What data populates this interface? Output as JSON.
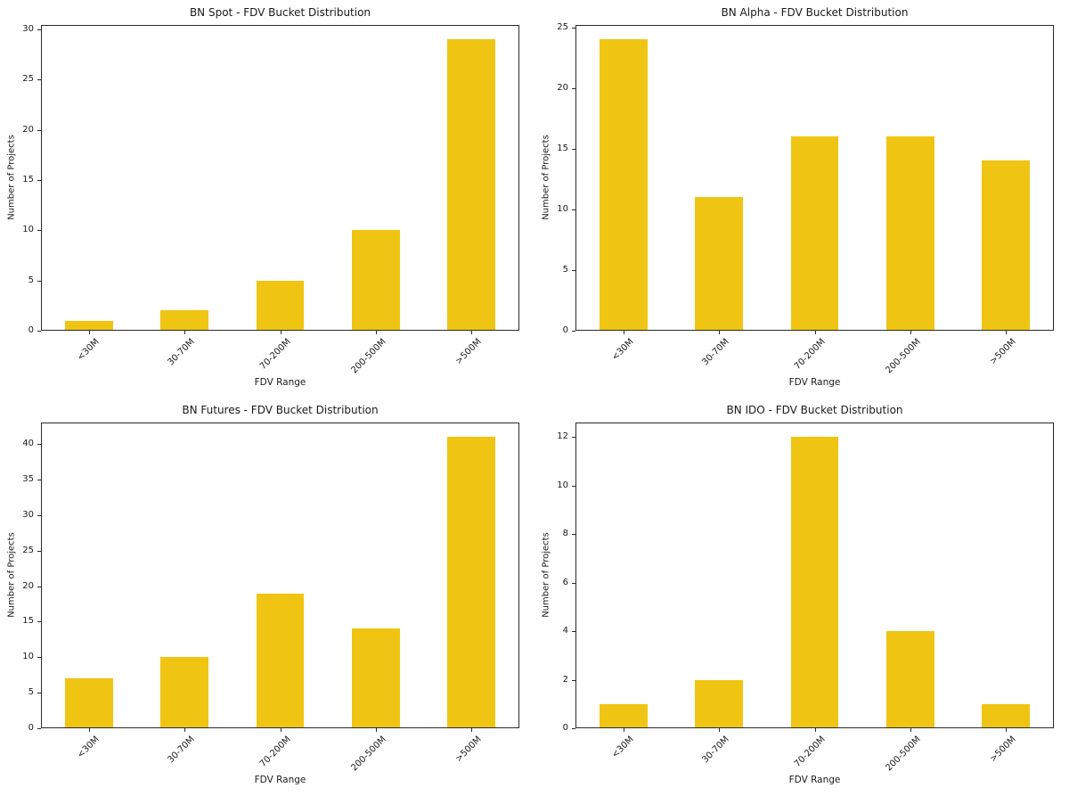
{
  "figure": {
    "background": "#ffffff",
    "axis_color": "#2a2a2a",
    "text_color": "#1a1a1a",
    "bar_color": "#f0c413"
  },
  "chart_data": [
    {
      "type": "bar",
      "title": "BN Spot - FDV Bucket Distribution",
      "xlabel": "FDV Range",
      "ylabel": "Number of Projects",
      "categories": [
        "<30M",
        "30-70M",
        "70-200M",
        "200-500M",
        ">500M"
      ],
      "values": [
        1,
        2,
        5,
        10,
        29
      ],
      "yticks": [
        0,
        5,
        10,
        15,
        20,
        25,
        30
      ],
      "ylim": [
        0,
        30.45
      ],
      "bar_color": "#f0c413",
      "bar_width_ratio": 0.5,
      "grid": false,
      "legend": false
    },
    {
      "type": "bar",
      "title": "BN Alpha - FDV Bucket Distribution",
      "xlabel": "FDV Range",
      "ylabel": "Number of Projects",
      "categories": [
        "<30M",
        "30-70M",
        "70-200M",
        "200-500M",
        ">500M"
      ],
      "values": [
        24,
        11,
        16,
        16,
        14
      ],
      "yticks": [
        0,
        5,
        10,
        15,
        20,
        25
      ],
      "ylim": [
        0,
        25.2
      ],
      "bar_color": "#f0c413",
      "bar_width_ratio": 0.5,
      "grid": false,
      "legend": false
    },
    {
      "type": "bar",
      "title": "BN Futures - FDV Bucket Distribution",
      "xlabel": "FDV Range",
      "ylabel": "Number of Projects",
      "categories": [
        "<30M",
        "30-70M",
        "70-200M",
        "200-500M",
        ">500M"
      ],
      "values": [
        7,
        10,
        19,
        14,
        41
      ],
      "yticks": [
        0,
        5,
        10,
        15,
        20,
        25,
        30,
        35,
        40
      ],
      "ylim": [
        0,
        43.05
      ],
      "bar_color": "#f0c413",
      "bar_width_ratio": 0.5,
      "grid": false,
      "legend": false
    },
    {
      "type": "bar",
      "title": "BN IDO - FDV Bucket Distribution",
      "xlabel": "FDV Range",
      "ylabel": "Number of Projects",
      "categories": [
        "<30M",
        "30-70M",
        "70-200M",
        "200-500M",
        ">500M"
      ],
      "values": [
        1,
        2,
        12,
        4,
        1
      ],
      "yticks": [
        0,
        2,
        4,
        6,
        8,
        10,
        12
      ],
      "ylim": [
        0,
        12.6
      ],
      "bar_color": "#f0c413",
      "bar_width_ratio": 0.5,
      "grid": false,
      "legend": false
    }
  ]
}
